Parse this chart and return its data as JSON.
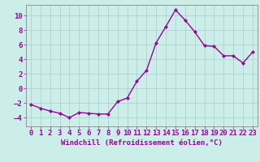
{
  "x": [
    0,
    1,
    2,
    3,
    4,
    5,
    6,
    7,
    8,
    9,
    10,
    11,
    12,
    13,
    14,
    15,
    16,
    17,
    18,
    19,
    20,
    21,
    22,
    23
  ],
  "y": [
    -2.2,
    -2.7,
    -3.1,
    -3.4,
    -4.0,
    -3.3,
    -3.4,
    -3.5,
    -3.5,
    -1.8,
    -1.3,
    1.0,
    2.5,
    6.3,
    8.5,
    10.8,
    9.4,
    7.8,
    5.9,
    5.8,
    4.5,
    4.5,
    3.5,
    5.0
  ],
  "line_color": "#990099",
  "marker": "D",
  "markersize": 2.0,
  "linewidth": 1.0,
  "bg_color": "#cceee8",
  "grid_color": "#aacccc",
  "xlabel": "Windchill (Refroidissement éolien,°C)",
  "xlim": [
    -0.5,
    23.5
  ],
  "ylim": [
    -5.2,
    11.5
  ],
  "yticks": [
    -4,
    -2,
    0,
    2,
    4,
    6,
    8,
    10
  ],
  "xticks": [
    0,
    1,
    2,
    3,
    4,
    5,
    6,
    7,
    8,
    9,
    10,
    11,
    12,
    13,
    14,
    15,
    16,
    17,
    18,
    19,
    20,
    21,
    22,
    23
  ],
  "xlabel_fontsize": 6.5,
  "tick_fontsize": 6.5,
  "label_color": "#990099",
  "spine_color": "#888888"
}
